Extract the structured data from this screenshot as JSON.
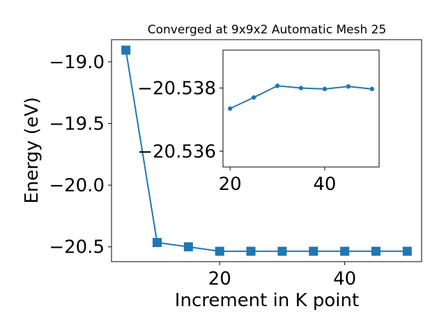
{
  "chart_data": [
    {
      "type": "line",
      "title": "Converged at 9x9x2 Automatic Mesh 25",
      "xlabel": "Increment in K point",
      "ylabel": "Energy (eV)",
      "marker": "square",
      "color": "#1f77b4",
      "xlim": [
        2.7,
        52.3
      ],
      "ylim": [
        -20.62,
        -18.82
      ],
      "xticks": [
        20,
        40
      ],
      "yticks": [
        -19.0,
        -19.5,
        -20.0,
        -20.5
      ],
      "xtick_labels": [
        "20",
        "40"
      ],
      "ytick_labels": [
        "−19.0",
        "−19.5",
        "−20.0",
        "−20.5"
      ],
      "x": [
        5,
        10,
        15,
        20,
        25,
        30,
        35,
        40,
        45,
        50
      ],
      "y": [
        -18.905,
        -20.465,
        -20.5,
        -20.536,
        -20.536,
        -20.536,
        -20.536,
        -20.536,
        -20.536,
        -20.536
      ]
    },
    {
      "type": "line",
      "inset": true,
      "marker": "circle",
      "color": "#1f77b4",
      "xlim": [
        18.5,
        51.5
      ],
      "ylim": [
        -20.5355,
        -20.5392
      ],
      "xticks": [
        20,
        40
      ],
      "yticks": [
        -20.538,
        -20.536
      ],
      "xtick_labels": [
        "20",
        "40"
      ],
      "ytick_labels": [
        "−20.538",
        "−20.536"
      ],
      "x": [
        20,
        25,
        30,
        35,
        40,
        45,
        50
      ],
      "y": [
        -20.53735,
        -20.5377,
        -20.53807,
        -20.538,
        -20.53797,
        -20.53805,
        -20.53797
      ]
    }
  ]
}
